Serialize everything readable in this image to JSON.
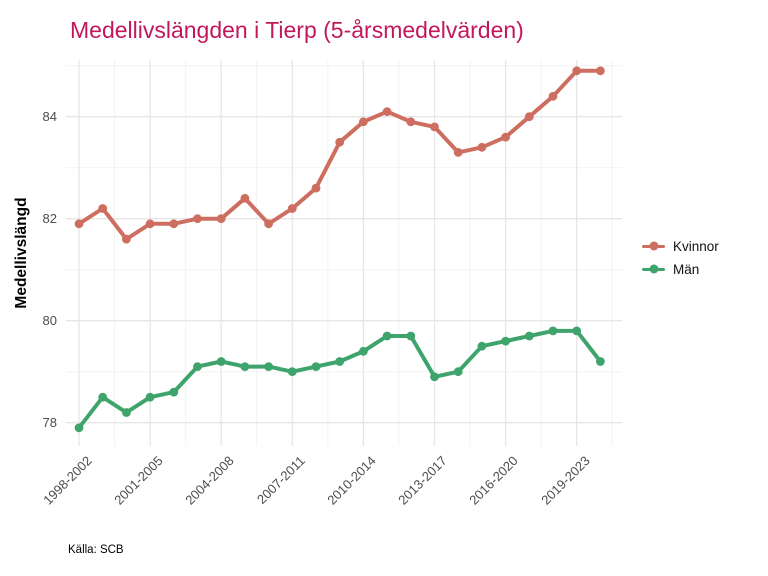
{
  "title": "Medellivslängden i Tierp (5-årsmedelvärden)",
  "caption": "Källa: SCB",
  "colors": {
    "title": "#C2185B",
    "kvinnor": "#CD6E61",
    "man": "#3FA46C",
    "axis_text": "#4d4d4d",
    "grid_major": "#E6E6E6",
    "grid_minor": "#F2F2F2"
  },
  "chart_data": {
    "type": "line",
    "title": "Medellivslängden i Tierp (5-årsmedelvärden)",
    "xlabel": "",
    "ylabel": "Medellivslängd",
    "ylim": [
      77.5,
      85.3
    ],
    "grid": true,
    "legend_position": "right",
    "n_points": 23,
    "x_tick_indices": [
      0,
      3,
      6,
      9,
      12,
      15,
      18,
      21
    ],
    "x_tick_labels": [
      "1998-2002",
      "2001-2005",
      "2004-2008",
      "2007-2011",
      "2010-2014",
      "2013-2017",
      "2016-2020",
      "2019-2023"
    ],
    "y_ticks": [
      78,
      80,
      82,
      84
    ],
    "y_minor_ticks": [
      79,
      81,
      83,
      85
    ],
    "series": [
      {
        "name": "Kvinnor",
        "color": "#CD6E61",
        "values": [
          81.9,
          82.2,
          81.6,
          81.9,
          81.9,
          82.0,
          82.0,
          82.4,
          81.9,
          82.2,
          82.6,
          83.5,
          83.9,
          84.1,
          83.9,
          83.8,
          83.3,
          83.4,
          83.6,
          84.0,
          84.4,
          84.9,
          84.9
        ]
      },
      {
        "name": "Män",
        "color": "#3FA46C",
        "values": [
          77.9,
          78.5,
          78.2,
          78.5,
          78.6,
          79.1,
          79.2,
          79.1,
          79.1,
          79.0,
          79.1,
          79.2,
          79.4,
          79.7,
          79.7,
          78.9,
          79.0,
          79.5,
          79.6,
          79.7,
          79.8,
          79.8,
          79.2
        ]
      }
    ]
  }
}
